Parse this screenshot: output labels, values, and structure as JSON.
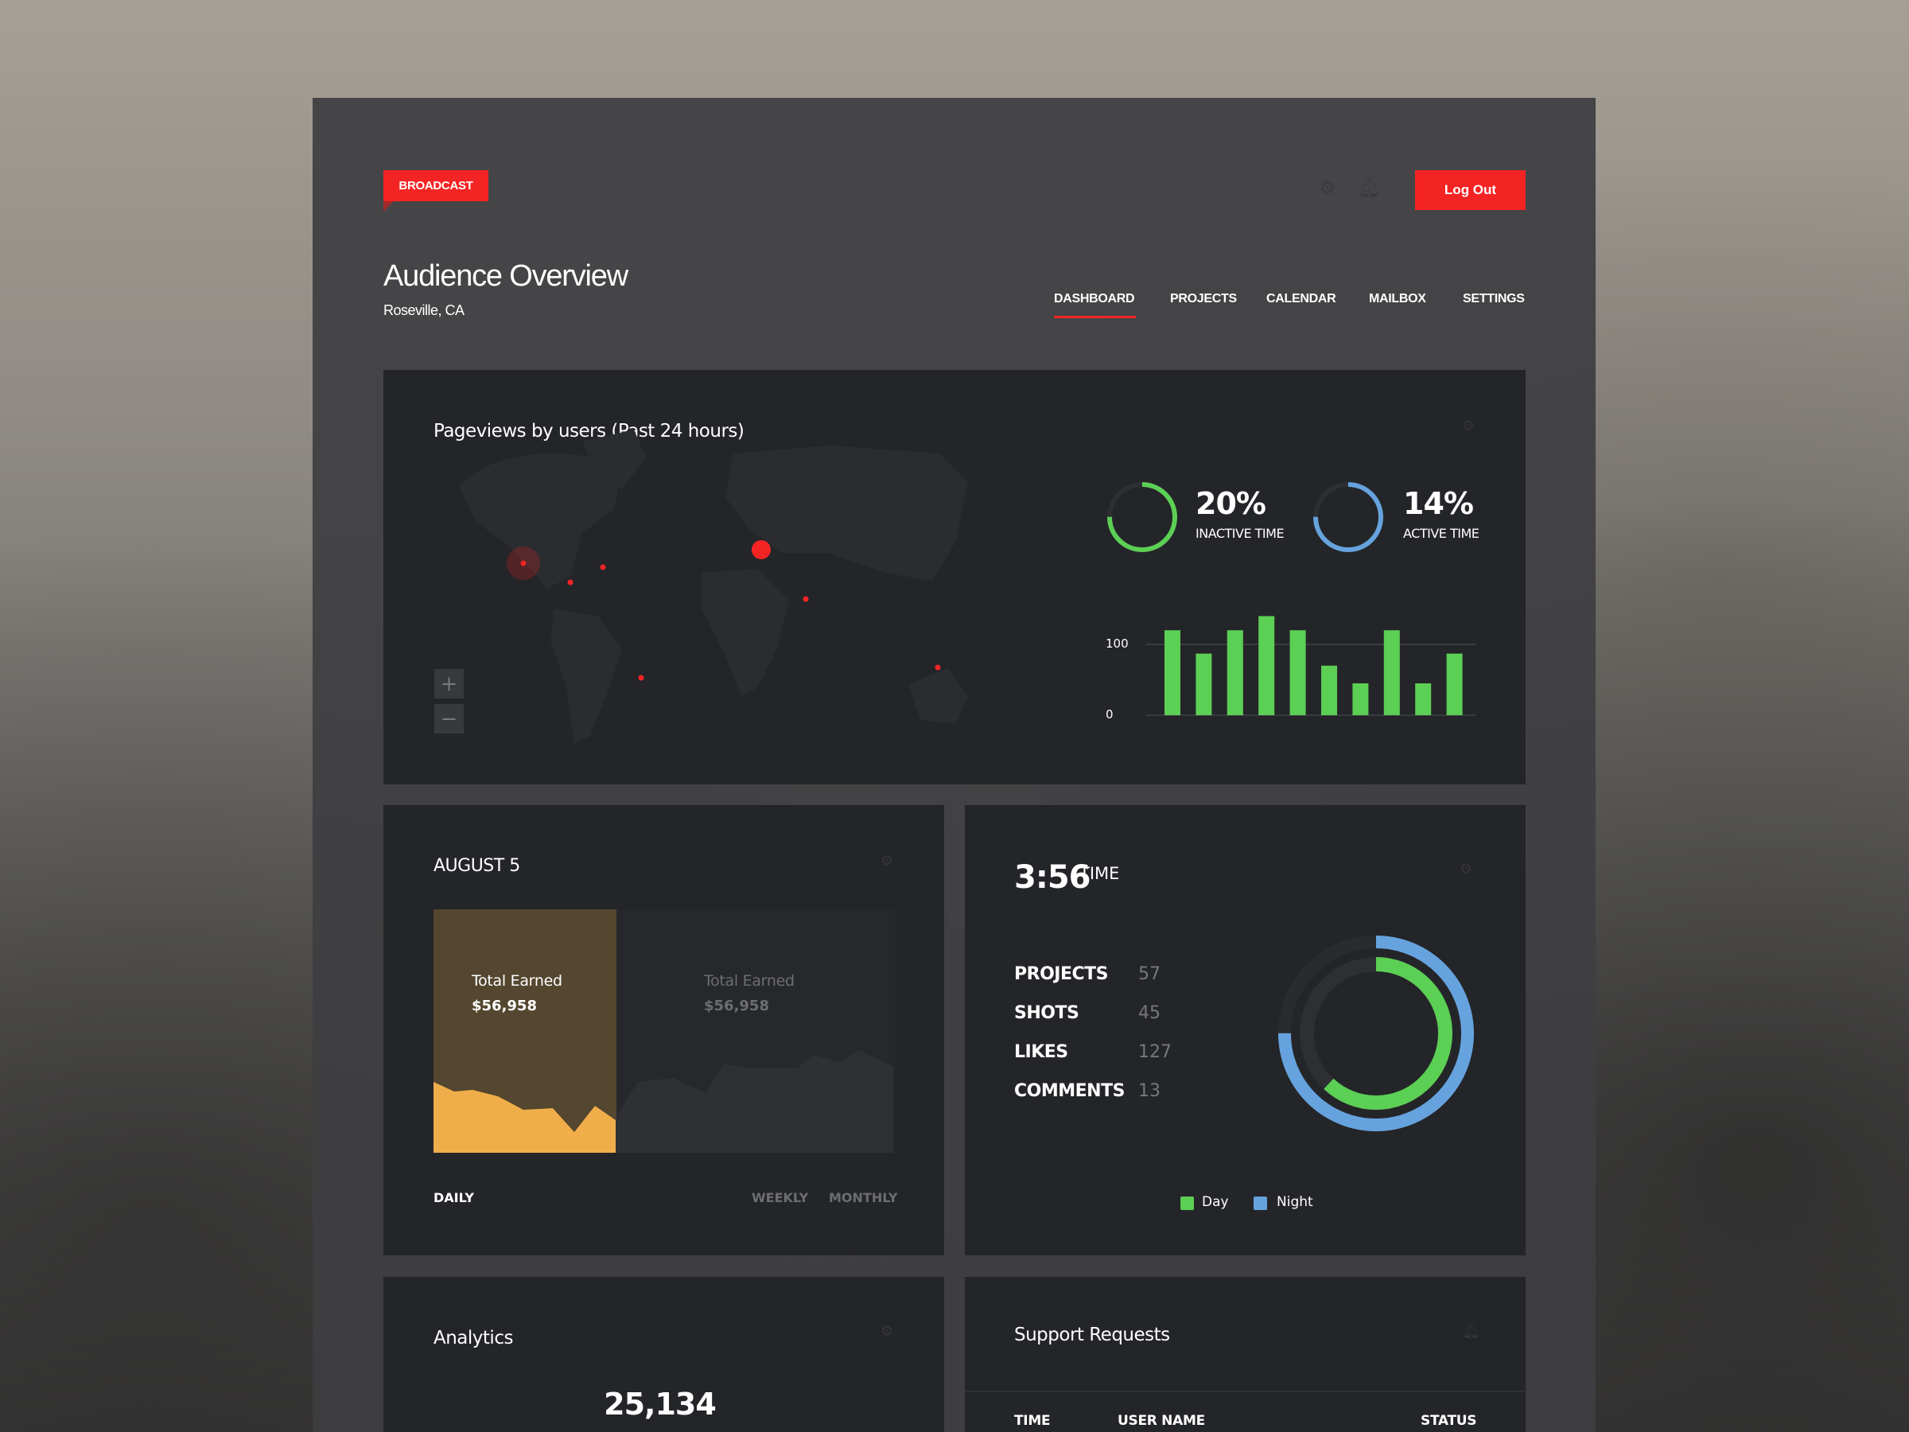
{
  "header": {
    "brand": "BROADCAST",
    "logout_label": "Log Out",
    "title": "Audience Overview",
    "location": "Roseville, CA"
  },
  "nav": [
    {
      "label": "DASHBOARD",
      "active": true
    },
    {
      "label": "PROJECTS"
    },
    {
      "label": "CALENDAR"
    },
    {
      "label": "MAILBOX"
    },
    {
      "label": "SETTINGS"
    }
  ],
  "pageviews": {
    "title": "Pageviews by users (Past 24 hours)",
    "zoom_in": "+",
    "zoom_out": "−",
    "inactive": {
      "value": "20%",
      "label": "INACTIVE TIME",
      "fraction": 0.75
    },
    "active": {
      "value": "14%",
      "label": "ACTIVE TIME",
      "fraction": 0.75
    }
  },
  "chart_data": {
    "type": "bar",
    "yticks": [
      "100",
      "0"
    ],
    "ylim": [
      0,
      150
    ],
    "values": [
      120,
      87,
      120,
      140,
      120,
      70,
      45,
      120,
      45,
      87
    ],
    "color": "#5ccf55",
    "grid": true
  },
  "earnings": {
    "title": "AUGUST 5",
    "panels": [
      {
        "label": "Total Earned",
        "value": "$56,958"
      },
      {
        "label": "Total Earned",
        "value": "$56,958"
      }
    ],
    "tabs": [
      "DAILY",
      "WEEKLY",
      "MONTHLY"
    ],
    "colors": {
      "active_bg": "#54462f",
      "active_area": "#f0ae4a"
    }
  },
  "time": {
    "value": "3:56",
    "label": "TIME",
    "stats": [
      {
        "label": "PROJECTS",
        "value": "57"
      },
      {
        "label": "SHOTS",
        "value": "45"
      },
      {
        "label": "LIKES",
        "value": "127"
      },
      {
        "label": "COMMENTS",
        "value": "13"
      }
    ],
    "donut": {
      "day_fraction": 0.62,
      "night_fraction": 0.75
    },
    "legend": [
      {
        "label": "Day",
        "color": "#5ccf55"
      },
      {
        "label": "Night",
        "color": "#66a3de"
      }
    ]
  },
  "analytics": {
    "title": "Analytics",
    "total": "25,134"
  },
  "support": {
    "title": "Support Requests",
    "columns": [
      "TIME",
      "USER NAME",
      "STATUS"
    ]
  }
}
